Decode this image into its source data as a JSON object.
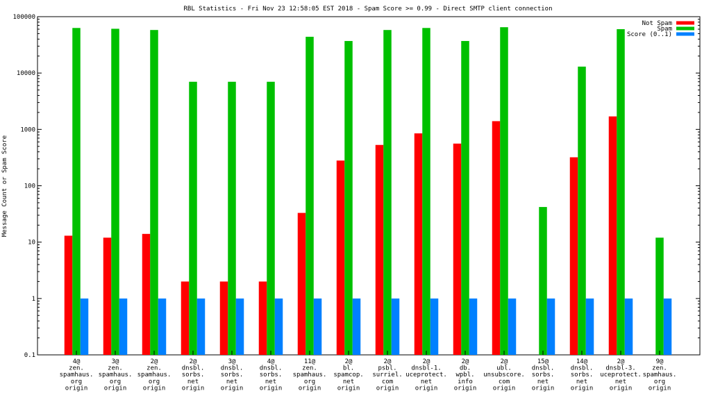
{
  "chart_data": {
    "type": "bar",
    "title": "RBL Statistics - Fri Nov 23 12:58:05 EST 2018 - Spam Score >= 0.99 - Direct SMTP client connection",
    "ylabel": "Message Count or Spam Score",
    "xlabel": "",
    "yscale": "log",
    "ylim": [
      0.1,
      100000
    ],
    "yticks": [
      {
        "value": 0.1,
        "label": "0.1"
      },
      {
        "value": 1,
        "label": "1"
      },
      {
        "value": 10,
        "label": "10"
      },
      {
        "value": 100,
        "label": "100"
      },
      {
        "value": 1000,
        "label": "1000"
      },
      {
        "value": 10000,
        "label": "10000"
      },
      {
        "value": 100000,
        "label": "100000"
      }
    ],
    "grid": false,
    "legend_position": "top-right",
    "categories": [
      [
        "4@",
        "zen.",
        "spamhaus.",
        "org",
        "origin"
      ],
      [
        "3@",
        "zen.",
        "spamhaus.",
        "org",
        "origin"
      ],
      [
        "2@",
        "zen.",
        "spamhaus.",
        "org",
        "origin"
      ],
      [
        "2@",
        "dnsbl.",
        "sorbs.",
        "net",
        "origin"
      ],
      [
        "3@",
        "dnsbl.",
        "sorbs.",
        "net",
        "origin"
      ],
      [
        "4@",
        "dnsbl.",
        "sorbs.",
        "net",
        "origin"
      ],
      [
        "11@",
        "zen.",
        "spamhaus.",
        "org",
        "origin"
      ],
      [
        "2@",
        "bl.",
        "spamcop.",
        "net",
        "origin"
      ],
      [
        "2@",
        "psbl.",
        "surriel.",
        "com",
        "origin"
      ],
      [
        "2@",
        "dnsbl-1.",
        "uceprotect.",
        "net",
        "origin"
      ],
      [
        "2@",
        "db.",
        "wpbl.",
        "info",
        "origin"
      ],
      [
        "2@",
        "ubl.",
        "unsubscore.",
        "com",
        "origin"
      ],
      [
        "15@",
        "dnsbl.",
        "sorbs.",
        "net",
        "origin"
      ],
      [
        "14@",
        "dnsbl.",
        "sorbs.",
        "net",
        "origin"
      ],
      [
        "2@",
        "dnsbl-3.",
        "uceprotect.",
        "net",
        "origin"
      ],
      [
        "9@",
        "zen.",
        "spamhaus.",
        "org",
        "origin"
      ]
    ],
    "series": [
      {
        "name": "Not Spam",
        "color": "#ff0000",
        "values": [
          13,
          12,
          14,
          2,
          2,
          2,
          33,
          280,
          530,
          850,
          560,
          1400,
          null,
          320,
          1700,
          null
        ]
      },
      {
        "name": "Spam",
        "color": "#00c000",
        "values": [
          63000,
          61000,
          58000,
          7000,
          7000,
          7000,
          44000,
          37000,
          58000,
          63000,
          37000,
          65000,
          42,
          13000,
          60000,
          12
        ]
      },
      {
        "name": "Score (0..1)",
        "color": "#0080ff",
        "values": [
          1,
          1,
          1,
          1,
          1,
          1,
          1,
          1,
          1,
          1,
          1,
          1,
          1,
          1,
          1,
          1
        ]
      }
    ]
  }
}
